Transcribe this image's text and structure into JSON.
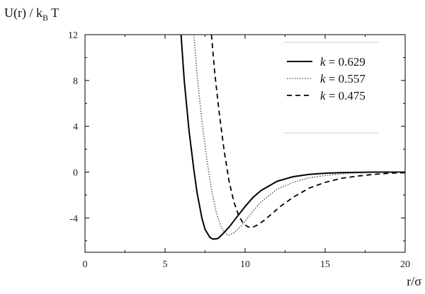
{
  "chart_data": {
    "type": "line",
    "xlabel": "r/σ",
    "ylabel_main": "U(r) / k",
    "ylabel_sub": "B",
    "ylabel_tail": " T",
    "xlim": [
      0,
      20
    ],
    "ylim": [
      -7,
      12
    ],
    "x_ticks": [
      0,
      5,
      10,
      15,
      20
    ],
    "y_ticks": [
      -4,
      0,
      4,
      8,
      12
    ],
    "grid": false,
    "legend_position": "top-right",
    "series": [
      {
        "name": "k = 0.629",
        "k_symbol": "k",
        "k_value": "= 0.629",
        "style": "solid",
        "color": "#000000",
        "x": [
          6.0,
          6.2,
          6.5,
          6.8,
          7.0,
          7.3,
          7.5,
          7.8,
          8.0,
          8.3,
          8.6,
          9.0,
          9.5,
          10.0,
          10.5,
          11.0,
          12.0,
          13.0,
          14.0,
          15.0,
          16.0,
          17.0,
          18.0,
          19.0,
          20.0
        ],
        "y": [
          12.0,
          8.0,
          3.6,
          0.2,
          -1.8,
          -4.0,
          -5.0,
          -5.7,
          -5.85,
          -5.8,
          -5.4,
          -4.8,
          -3.9,
          -3.0,
          -2.2,
          -1.6,
          -0.8,
          -0.4,
          -0.2,
          -0.1,
          -0.05,
          -0.02,
          0.0,
          0.0,
          0.0
        ]
      },
      {
        "name": "k = 0.557",
        "k_symbol": "k",
        "k_value": "= 0.557",
        "style": "dotted",
        "color": "#555555",
        "x": [
          6.8,
          7.0,
          7.3,
          7.6,
          7.9,
          8.2,
          8.5,
          8.8,
          9.0,
          9.3,
          9.6,
          10.0,
          10.5,
          11.0,
          12.0,
          13.0,
          14.0,
          15.0,
          16.0,
          17.0,
          18.0,
          19.0,
          20.0
        ],
        "y": [
          12.0,
          8.5,
          4.5,
          1.2,
          -1.5,
          -3.5,
          -4.8,
          -5.4,
          -5.5,
          -5.3,
          -4.9,
          -4.3,
          -3.4,
          -2.6,
          -1.5,
          -0.9,
          -0.5,
          -0.3,
          -0.15,
          -0.08,
          -0.04,
          -0.02,
          0.0
        ]
      },
      {
        "name": "k = 0.475",
        "k_symbol": "k",
        "k_value": "= 0.475",
        "style": "dashed",
        "color": "#000000",
        "x": [
          7.9,
          8.1,
          8.4,
          8.7,
          9.0,
          9.3,
          9.6,
          9.9,
          10.2,
          10.5,
          10.8,
          11.2,
          11.7,
          12.2,
          13.0,
          14.0,
          15.0,
          16.0,
          17.0,
          18.0,
          19.0,
          20.0
        ],
        "y": [
          12.0,
          8.7,
          5.0,
          1.8,
          -0.8,
          -2.6,
          -3.8,
          -4.5,
          -4.8,
          -4.8,
          -4.6,
          -4.2,
          -3.6,
          -3.0,
          -2.2,
          -1.4,
          -0.9,
          -0.55,
          -0.35,
          -0.2,
          -0.1,
          -0.05
        ]
      }
    ]
  }
}
